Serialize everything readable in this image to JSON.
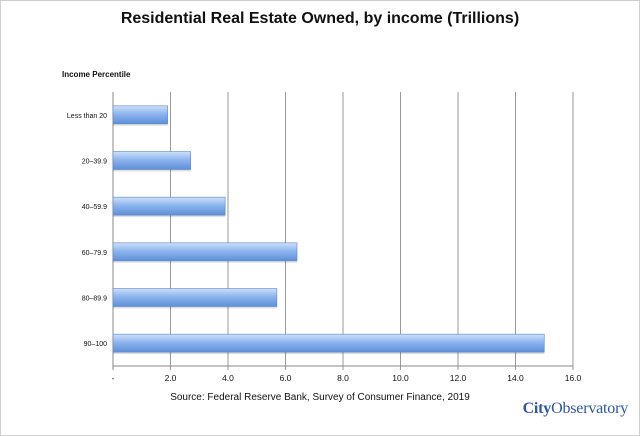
{
  "chart_data": {
    "type": "bar",
    "orientation": "horizontal",
    "title": "Residential Real Estate Owned, by income (Trillions)",
    "ylabel": "Income Percentile",
    "xlabel": "",
    "categories": [
      "Less than 20",
      "20–39.9",
      "40–59.9",
      "60–79.9",
      "80–89.9",
      "90–100"
    ],
    "values": [
      1.9,
      2.7,
      3.9,
      6.4,
      5.7,
      15.0
    ],
    "xlim": [
      0,
      16
    ],
    "x_ticks": [
      "-",
      "2.0",
      "4.0",
      "6.0",
      "8.0",
      "10.0",
      "12.0",
      "14.0",
      "16.0"
    ],
    "grid": "vertical",
    "bar_color": "#7aa6e6"
  },
  "footer": {
    "source": "Source:  Federal Reserve Bank, Survey of Consumer Finance, 2019",
    "logo_city": "City",
    "logo_observatory": "Observatory"
  }
}
